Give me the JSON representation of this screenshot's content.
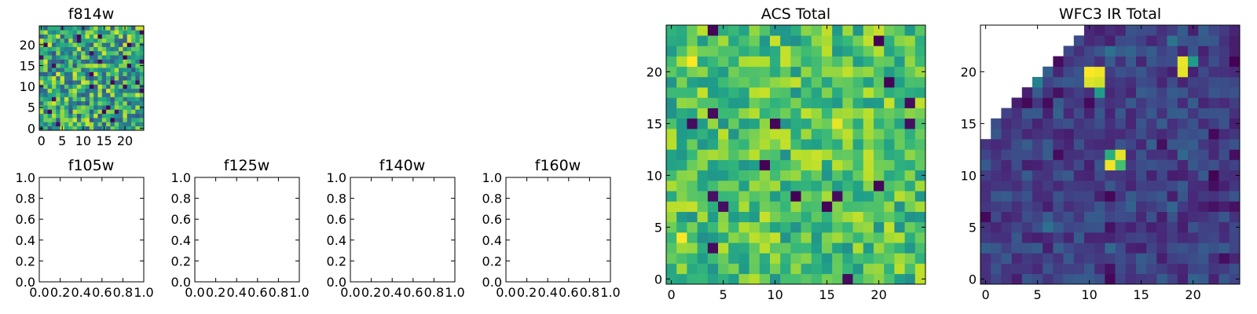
{
  "figure": {
    "background": "#ffffff"
  },
  "chart_data": [
    {
      "id": "f814w",
      "type": "heatmap",
      "title": "f814w",
      "xlim": [
        -0.5,
        24.5
      ],
      "ylim": [
        -0.5,
        24.5
      ],
      "xticks": [
        0,
        5,
        10,
        15,
        20
      ],
      "yticks": [
        0,
        5,
        10,
        15,
        20
      ],
      "xtick_labels": [
        "0",
        "5",
        "10",
        "15",
        "20"
      ],
      "ytick_labels": [
        "0",
        "5",
        "10",
        "15",
        "20"
      ],
      "grid": {
        "rows": 25,
        "cols": 25,
        "seed": 7,
        "value_range": [
          0.25,
          0.95
        ],
        "min_value": 0,
        "max_value": 1,
        "low_spikes": 0.03,
        "mask": "none"
      },
      "colormap": "viridis"
    },
    {
      "id": "f105w",
      "type": "empty",
      "title": "f105w",
      "xlim": [
        0,
        1
      ],
      "ylim": [
        0,
        1
      ],
      "xticks": [
        0,
        0.2,
        0.4,
        0.6,
        0.8,
        1.0
      ],
      "yticks": [
        0,
        0.2,
        0.4,
        0.6,
        0.8,
        1.0
      ],
      "xtick_labels": [
        "0.0",
        "0.2",
        "0.4",
        "0.6",
        "0.8",
        "1.0"
      ],
      "ytick_labels": [
        "0.0",
        "0.2",
        "0.4",
        "0.6",
        "0.8",
        "1.0"
      ]
    },
    {
      "id": "f125w",
      "type": "empty",
      "title": "f125w",
      "xlim": [
        0,
        1
      ],
      "ylim": [
        0,
        1
      ],
      "xticks": [
        0,
        0.2,
        0.4,
        0.6,
        0.8,
        1.0
      ],
      "yticks": [
        0,
        0.2,
        0.4,
        0.6,
        0.8,
        1.0
      ],
      "xtick_labels": [
        "0.0",
        "0.2",
        "0.4",
        "0.6",
        "0.8",
        "1.0"
      ],
      "ytick_labels": [
        "0.0",
        "0.2",
        "0.4",
        "0.6",
        "0.8",
        "1.0"
      ]
    },
    {
      "id": "f140w",
      "type": "empty",
      "title": "f140w",
      "xlim": [
        0,
        1
      ],
      "ylim": [
        0,
        1
      ],
      "xticks": [
        0,
        0.2,
        0.4,
        0.6,
        0.8,
        1.0
      ],
      "yticks": [
        0,
        0.2,
        0.4,
        0.6,
        0.8,
        1.0
      ],
      "xtick_labels": [
        "0.0",
        "0.2",
        "0.4",
        "0.6",
        "0.8",
        "1.0"
      ],
      "ytick_labels": [
        "0.0",
        "0.2",
        "0.4",
        "0.6",
        "0.8",
        "1.0"
      ]
    },
    {
      "id": "f160w",
      "type": "empty",
      "title": "f160w",
      "xlim": [
        0,
        1
      ],
      "ylim": [
        0,
        1
      ],
      "xticks": [
        0,
        0.2,
        0.4,
        0.6,
        0.8,
        1.0
      ],
      "yticks": [
        0,
        0.2,
        0.4,
        0.6,
        0.8,
        1.0
      ],
      "xtick_labels": [
        "0.0",
        "0.2",
        "0.4",
        "0.6",
        "0.8",
        "1.0"
      ],
      "ytick_labels": [
        "0.0",
        "0.2",
        "0.4",
        "0.6",
        "0.8",
        "1.0"
      ]
    },
    {
      "id": "acs-total",
      "type": "heatmap",
      "title": "ACS Total",
      "xlim": [
        -0.5,
        24.5
      ],
      "ylim": [
        -0.5,
        24.5
      ],
      "xticks": [
        0,
        5,
        10,
        15,
        20
      ],
      "yticks": [
        0,
        5,
        10,
        15,
        20
      ],
      "xtick_labels": [
        "0",
        "5",
        "10",
        "15",
        "20"
      ],
      "ytick_labels": [
        "0",
        "5",
        "10",
        "15",
        "20"
      ],
      "grid": {
        "rows": 25,
        "cols": 25,
        "seed": 21,
        "value_range": [
          0.5,
          0.92
        ],
        "min_value": 0,
        "max_value": 1,
        "low_spikes": 0.025,
        "mask": "none"
      },
      "colormap": "viridis"
    },
    {
      "id": "wfc3-ir-total",
      "type": "heatmap",
      "title": "WFC3 IR Total",
      "xlim": [
        -0.5,
        24.5
      ],
      "ylim": [
        -0.5,
        24.5
      ],
      "xticks": [
        0,
        5,
        10,
        15,
        20
      ],
      "yticks": [
        0,
        5,
        10,
        15,
        20
      ],
      "xtick_labels": [
        "0",
        "5",
        "10",
        "15",
        "20"
      ],
      "ytick_labels": [
        "0",
        "5",
        "10",
        "15",
        "20"
      ],
      "grid": {
        "rows": 25,
        "cols": 25,
        "seed": 99,
        "value_range": [
          0.08,
          0.3
        ],
        "min_value": 0,
        "max_value": 1,
        "low_spikes": 0.04,
        "mask": "upper-left-triangle",
        "hotspots": [
          [
            10,
            20,
            1.0
          ],
          [
            11,
            20,
            0.98
          ],
          [
            10,
            19,
            0.95
          ],
          [
            11,
            19,
            0.93
          ],
          [
            11,
            18,
            0.55
          ],
          [
            19,
            21,
            0.97
          ],
          [
            19,
            20,
            0.96
          ],
          [
            20,
            21,
            0.55
          ],
          [
            12,
            12,
            0.62
          ],
          [
            13,
            12,
            0.96
          ],
          [
            12,
            11,
            0.98
          ],
          [
            13,
            11,
            0.7
          ]
        ]
      },
      "colormap": "viridis"
    }
  ]
}
